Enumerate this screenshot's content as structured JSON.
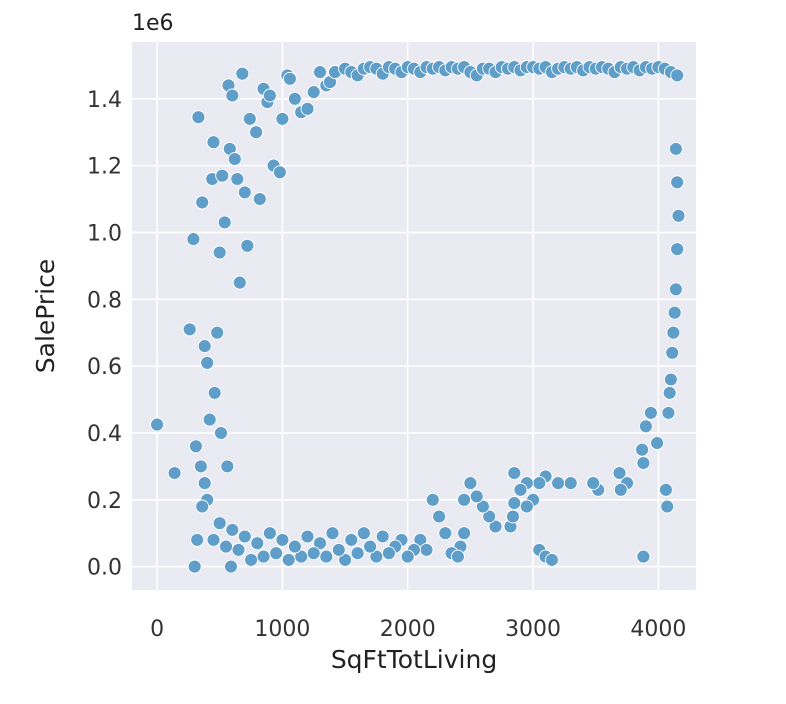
{
  "chart_data": {
    "type": "scatter",
    "title": "",
    "xlabel": "SqFtTotLiving",
    "ylabel": "SalePrice",
    "y_offset_label": "1e6",
    "xlim": [
      -200,
      4300
    ],
    "ylim": [
      -70000,
      1570000
    ],
    "x_ticks": [
      0,
      1000,
      2000,
      3000,
      4000
    ],
    "x_tick_labels": [
      "0",
      "1000",
      "2000",
      "3000",
      "4000"
    ],
    "y_ticks": [
      0,
      200000,
      400000,
      600000,
      800000,
      1000000,
      1200000,
      1400000
    ],
    "y_tick_labels": [
      "0.0",
      "0.2",
      "0.4",
      "0.6",
      "0.8",
      "1.0",
      "1.2",
      "1.4"
    ],
    "grid": true,
    "colors": {
      "marker": "#5f9ec9",
      "marker_edge": "#ffffff",
      "plot_bg": "#eaeaf2",
      "grid": "#ffffff"
    },
    "series": [
      {
        "points": [
          [
            0,
            425000
          ],
          [
            140,
            280000
          ],
          [
            260,
            710000
          ],
          [
            290,
            980000
          ],
          [
            300,
            0
          ],
          [
            310,
            360000
          ],
          [
            320,
            80000
          ],
          [
            330,
            1345000
          ],
          [
            350,
            300000
          ],
          [
            360,
            1090000
          ],
          [
            380,
            660000
          ],
          [
            400,
            610000
          ],
          [
            420,
            440000
          ],
          [
            440,
            1160000
          ],
          [
            450,
            1270000
          ],
          [
            460,
            520000
          ],
          [
            480,
            700000
          ],
          [
            500,
            940000
          ],
          [
            510,
            400000
          ],
          [
            520,
            1170000
          ],
          [
            540,
            1030000
          ],
          [
            560,
            300000
          ],
          [
            570,
            1440000
          ],
          [
            580,
            1250000
          ],
          [
            590,
            0
          ],
          [
            600,
            1410000
          ],
          [
            620,
            1220000
          ],
          [
            640,
            1160000
          ],
          [
            660,
            850000
          ],
          [
            680,
            1475000
          ],
          [
            700,
            1120000
          ],
          [
            720,
            960000
          ],
          [
            740,
            1340000
          ],
          [
            790,
            1300000
          ],
          [
            820,
            1100000
          ],
          [
            850,
            1430000
          ],
          [
            880,
            1390000
          ],
          [
            900,
            1410000
          ],
          [
            930,
            1200000
          ],
          [
            980,
            1180000
          ],
          [
            1000,
            1340000
          ],
          [
            1040,
            1470000
          ],
          [
            1060,
            1460000
          ],
          [
            1100,
            1400000
          ],
          [
            1150,
            1360000
          ],
          [
            1200,
            1370000
          ],
          [
            1250,
            1420000
          ],
          [
            1300,
            1480000
          ],
          [
            1350,
            1440000
          ],
          [
            1380,
            1450000
          ],
          [
            1420,
            1480000
          ],
          [
            1500,
            1490000
          ],
          [
            1550,
            1480000
          ],
          [
            1600,
            1470000
          ],
          [
            1650,
            1490000
          ],
          [
            1700,
            1495000
          ],
          [
            1750,
            1490000
          ],
          [
            1800,
            1475000
          ],
          [
            1850,
            1495000
          ],
          [
            1900,
            1490000
          ],
          [
            1950,
            1480000
          ],
          [
            2000,
            1495000
          ],
          [
            2050,
            1490000
          ],
          [
            2100,
            1480000
          ],
          [
            2150,
            1495000
          ],
          [
            2200,
            1490000
          ],
          [
            2250,
            1495000
          ],
          [
            2300,
            1485000
          ],
          [
            2350,
            1495000
          ],
          [
            2400,
            1490000
          ],
          [
            2450,
            1495000
          ],
          [
            2500,
            1480000
          ],
          [
            2550,
            1470000
          ],
          [
            2600,
            1490000
          ],
          [
            2650,
            1490000
          ],
          [
            2700,
            1480000
          ],
          [
            2750,
            1495000
          ],
          [
            2800,
            1490000
          ],
          [
            2850,
            1495000
          ],
          [
            2900,
            1485000
          ],
          [
            2950,
            1495000
          ],
          [
            3000,
            1495000
          ],
          [
            3050,
            1490000
          ],
          [
            3100,
            1495000
          ],
          [
            3150,
            1480000
          ],
          [
            3200,
            1490000
          ],
          [
            3250,
            1495000
          ],
          [
            3300,
            1490000
          ],
          [
            3350,
            1495000
          ],
          [
            3400,
            1485000
          ],
          [
            3450,
            1495000
          ],
          [
            3500,
            1490000
          ],
          [
            3550,
            1495000
          ],
          [
            3600,
            1490000
          ],
          [
            3650,
            1480000
          ],
          [
            3700,
            1495000
          ],
          [
            3750,
            1490000
          ],
          [
            3800,
            1495000
          ],
          [
            3850,
            1485000
          ],
          [
            3900,
            1495000
          ],
          [
            3950,
            1490000
          ],
          [
            4000,
            1495000
          ],
          [
            4050,
            1490000
          ],
          [
            4100,
            1480000
          ],
          [
            4150,
            1470000
          ],
          [
            4080,
            460000
          ],
          [
            4090,
            520000
          ],
          [
            4100,
            560000
          ],
          [
            4110,
            640000
          ],
          [
            4120,
            700000
          ],
          [
            4130,
            760000
          ],
          [
            4140,
            830000
          ],
          [
            4150,
            950000
          ],
          [
            4160,
            1050000
          ],
          [
            4150,
            1150000
          ],
          [
            4140,
            1250000
          ],
          [
            4060,
            230000
          ],
          [
            4070,
            180000
          ],
          [
            3990,
            370000
          ],
          [
            3880,
            310000
          ],
          [
            3870,
            350000
          ],
          [
            3900,
            420000
          ],
          [
            3940,
            460000
          ],
          [
            3750,
            250000
          ],
          [
            3700,
            230000
          ],
          [
            3690,
            280000
          ],
          [
            3520,
            230000
          ],
          [
            3480,
            250000
          ],
          [
            3300,
            250000
          ],
          [
            3200,
            250000
          ],
          [
            3100,
            270000
          ],
          [
            3050,
            250000
          ],
          [
            3000,
            200000
          ],
          [
            2950,
            250000
          ],
          [
            2900,
            230000
          ],
          [
            2850,
            280000
          ],
          [
            2850,
            190000
          ],
          [
            2820,
            120000
          ],
          [
            2840,
            150000
          ],
          [
            2950,
            180000
          ],
          [
            2700,
            120000
          ],
          [
            2650,
            150000
          ],
          [
            2600,
            180000
          ],
          [
            2550,
            210000
          ],
          [
            2500,
            250000
          ],
          [
            2450,
            200000
          ],
          [
            2450,
            100000
          ],
          [
            2420,
            60000
          ],
          [
            2350,
            40000
          ],
          [
            2400,
            30000
          ],
          [
            3050,
            50000
          ],
          [
            3100,
            30000
          ],
          [
            3150,
            20000
          ],
          [
            3880,
            30000
          ],
          [
            2300,
            100000
          ],
          [
            2250,
            150000
          ],
          [
            2200,
            200000
          ],
          [
            2100,
            80000
          ],
          [
            2150,
            50000
          ],
          [
            2050,
            50000
          ],
          [
            2000,
            30000
          ],
          [
            1950,
            80000
          ],
          [
            1900,
            60000
          ],
          [
            1850,
            40000
          ],
          [
            1800,
            90000
          ],
          [
            1750,
            30000
          ],
          [
            1700,
            60000
          ],
          [
            1650,
            100000
          ],
          [
            1600,
            40000
          ],
          [
            1550,
            80000
          ],
          [
            1500,
            20000
          ],
          [
            1450,
            50000
          ],
          [
            1400,
            100000
          ],
          [
            1350,
            30000
          ],
          [
            1300,
            70000
          ],
          [
            1250,
            40000
          ],
          [
            1200,
            90000
          ],
          [
            1150,
            30000
          ],
          [
            1100,
            60000
          ],
          [
            1050,
            20000
          ],
          [
            1000,
            80000
          ],
          [
            950,
            40000
          ],
          [
            900,
            100000
          ],
          [
            850,
            30000
          ],
          [
            800,
            70000
          ],
          [
            750,
            20000
          ],
          [
            700,
            90000
          ],
          [
            650,
            50000
          ],
          [
            600,
            110000
          ],
          [
            550,
            60000
          ],
          [
            500,
            130000
          ],
          [
            450,
            80000
          ],
          [
            400,
            200000
          ],
          [
            380,
            250000
          ],
          [
            360,
            180000
          ]
        ]
      }
    ]
  }
}
